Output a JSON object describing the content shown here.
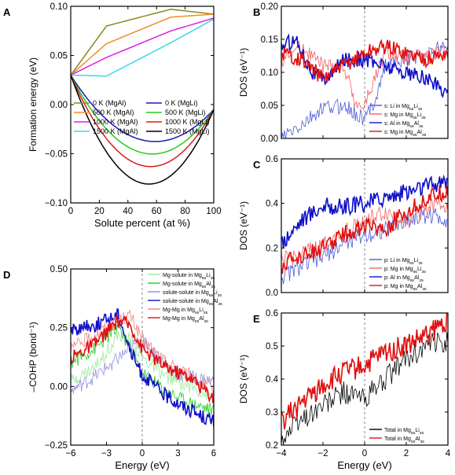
{
  "chart_data": [
    {
      "id": "A",
      "type": "line",
      "panel_label": "A",
      "xlabel": "Solute percent (at %)",
      "ylabel": "Formation energy (eV)",
      "xlim": [
        0,
        100
      ],
      "ylim": [
        -0.1,
        0.1
      ],
      "xticks": [
        "0",
        "20",
        "40",
        "60",
        "80",
        "100"
      ],
      "yticks": [
        "-0.10",
        "-0.05",
        "0.00",
        "0.05",
        "0.10"
      ],
      "legend_position": "center",
      "series": [
        {
          "name": "0 K (MgAl)",
          "color": "#8a8a1e",
          "values": [
            [
              0,
              0.03
            ],
            [
              25,
              0.08
            ],
            [
              70,
              0.097
            ],
            [
              100,
              0.092
            ]
          ]
        },
        {
          "name": "500 K (MgAl)",
          "color": "#f08c28",
          "values": [
            [
              0,
              0.03
            ],
            [
              25,
              0.062
            ],
            [
              70,
              0.089
            ],
            [
              100,
              0.092
            ]
          ]
        },
        {
          "name": "1000 K (MgAl)",
          "color": "#e020e0",
          "values": [
            [
              0,
              0.03
            ],
            [
              25,
              0.048
            ],
            [
              70,
              0.075
            ],
            [
              100,
              0.088
            ]
          ]
        },
        {
          "name": "1500 K (MgAl)",
          "color": "#3ad8e8",
          "values": [
            [
              0,
              0.03
            ],
            [
              25,
              0.029
            ],
            [
              70,
              0.063
            ],
            [
              100,
              0.087
            ]
          ]
        },
        {
          "name": "0 K (MgLi)",
          "color": "#1a1ab8",
          "values": [
            [
              0,
              0.03
            ],
            [
              50,
              -0.036
            ],
            [
              100,
              -0.005
            ]
          ]
        },
        {
          "name": "500 K (MgLi)",
          "color": "#22cc22",
          "values": [
            [
              0,
              0.03
            ],
            [
              50,
              -0.049
            ],
            [
              100,
              -0.005
            ]
          ]
        },
        {
          "name": "1000 K (MgLi)",
          "color": "#e01818",
          "values": [
            [
              0,
              0.03
            ],
            [
              50,
              -0.062
            ],
            [
              100,
              -0.005
            ]
          ]
        },
        {
          "name": "1500 K (MgLi)",
          "color": "#000000",
          "values": [
            [
              0,
              0.03
            ],
            [
              50,
              -0.08
            ],
            [
              100,
              -0.005
            ]
          ]
        }
      ]
    },
    {
      "id": "B",
      "type": "line",
      "panel_label": "B",
      "ylabel": "DOS (eV⁻¹)",
      "xlim": [
        -4,
        4
      ],
      "ylim": [
        0,
        0.2
      ],
      "xticks": [],
      "yticks": [
        "0.00",
        "0.05",
        "0.10",
        "0.15",
        "0.20"
      ],
      "legend_position": "bottom-right",
      "series": [
        {
          "name": "s: Li in Mg65Li35",
          "color": "#4a5ad8",
          "values": [
            [
              -4,
              0.0
            ],
            [
              -3,
              0.02
            ],
            [
              -2,
              0.045
            ],
            [
              -1,
              0.05
            ],
            [
              -0.2,
              0.032
            ],
            [
              0,
              0.028
            ],
            [
              0.5,
              0.06
            ],
            [
              1,
              0.11
            ],
            [
              2,
              0.12
            ],
            [
              3,
              0.13
            ],
            [
              4,
              0.14
            ]
          ]
        },
        {
          "name": "s: Mg in Mg65Li35",
          "color": "#f06060",
          "values": [
            [
              -4,
              0.12
            ],
            [
              -3,
              0.14
            ],
            [
              -2,
              0.11
            ],
            [
              -1,
              0.11
            ],
            [
              -0.5,
              0.06
            ],
            [
              -0.1,
              0.045
            ],
            [
              0.5,
              0.09
            ],
            [
              1,
              0.13
            ],
            [
              2,
              0.12
            ],
            [
              3,
              0.125
            ],
            [
              4,
              0.13
            ]
          ]
        },
        {
          "name": "s: Al in Mg65Al35",
          "color": "#1010c8",
          "values": [
            [
              -4,
              0.14
            ],
            [
              -3.3,
              0.15
            ],
            [
              -2.5,
              0.1
            ],
            [
              -2,
              0.09
            ],
            [
              -1.5,
              0.1
            ],
            [
              -1,
              0.12
            ],
            [
              0,
              0.12
            ],
            [
              1,
              0.11
            ],
            [
              2,
              0.1
            ],
            [
              3,
              0.09
            ],
            [
              4,
              0.07
            ]
          ]
        },
        {
          "name": "s: Mg in Mg65Al35",
          "color": "#e01010",
          "values": [
            [
              -4,
              0.13
            ],
            [
              -3,
              0.12
            ],
            [
              -2,
              0.09
            ],
            [
              -1,
              0.11
            ],
            [
              0,
              0.13
            ],
            [
              1,
              0.14
            ],
            [
              2,
              0.13
            ],
            [
              3,
              0.12
            ],
            [
              4,
              0.13
            ]
          ]
        }
      ]
    },
    {
      "id": "C",
      "type": "line",
      "panel_label": "C",
      "ylabel": "DOS (eV⁻¹)",
      "xlim": [
        -4,
        4
      ],
      "ylim": [
        0,
        0.6
      ],
      "xticks": [],
      "yticks": [
        "0.0",
        "0.2",
        "0.4",
        "0.6"
      ],
      "legend_position": "bottom-right",
      "series": [
        {
          "name": "p: Li in Mg65Li35",
          "color": "#4a5ad8",
          "values": [
            [
              -4,
              0.07
            ],
            [
              -3,
              0.12
            ],
            [
              -2,
              0.16
            ],
            [
              -1,
              0.22
            ],
            [
              0,
              0.26
            ],
            [
              1,
              0.28
            ],
            [
              2,
              0.32
            ],
            [
              3,
              0.35
            ],
            [
              4,
              0.33
            ]
          ]
        },
        {
          "name": "p: Mg in Mg65Li35",
          "color": "#f06060",
          "values": [
            [
              -4,
              0.14
            ],
            [
              -3,
              0.17
            ],
            [
              -2,
              0.21
            ],
            [
              -1,
              0.27
            ],
            [
              0,
              0.32
            ],
            [
              1,
              0.36
            ],
            [
              2,
              0.33
            ],
            [
              3,
              0.38
            ],
            [
              4,
              0.4
            ]
          ]
        },
        {
          "name": "p: Al in Mg65Al35",
          "color": "#1010c8",
          "values": [
            [
              -4,
              0.22
            ],
            [
              -3,
              0.33
            ],
            [
              -2,
              0.39
            ],
            [
              -1,
              0.38
            ],
            [
              0,
              0.4
            ],
            [
              1,
              0.43
            ],
            [
              2,
              0.45
            ],
            [
              3,
              0.48
            ],
            [
              4,
              0.5
            ]
          ]
        },
        {
          "name": "p: Mg in Mg65Al35",
          "color": "#e01010",
          "values": [
            [
              -4,
              0.12
            ],
            [
              -3,
              0.17
            ],
            [
              -2,
              0.2
            ],
            [
              -1,
              0.26
            ],
            [
              0,
              0.3
            ],
            [
              1,
              0.29
            ],
            [
              2,
              0.36
            ],
            [
              3,
              0.42
            ],
            [
              4,
              0.46
            ]
          ]
        }
      ]
    },
    {
      "id": "D",
      "type": "line",
      "panel_label": "D",
      "xlabel": "Energy (eV)",
      "ylabel": "–COHP (bond⁻¹)",
      "xlim": [
        -6,
        6
      ],
      "ylim": [
        -0.25,
        0.5
      ],
      "xticks": [
        "-6",
        "-3",
        "0",
        "3",
        "6"
      ],
      "yticks": [
        "-0.25",
        "0.00",
        "0.25",
        "0.50"
      ],
      "legend_position": "top-right",
      "series": [
        {
          "name": "Mg-solute in Mg65Li35",
          "color": "#9be89b",
          "values": [
            [
              -6,
              0.02
            ],
            [
              -4,
              0.08
            ],
            [
              -2,
              0.22
            ],
            [
              -1,
              0.2
            ],
            [
              0,
              0.12
            ],
            [
              2,
              0.04
            ],
            [
              4,
              0.0
            ],
            [
              6,
              -0.05
            ]
          ]
        },
        {
          "name": "Mg-solute in Mg65Al35",
          "color": "#22cc22",
          "values": [
            [
              -6,
              0.1
            ],
            [
              -4,
              0.16
            ],
            [
              -2,
              0.25
            ],
            [
              -1,
              0.16
            ],
            [
              0,
              0.06
            ],
            [
              2,
              -0.02
            ],
            [
              4,
              -0.07
            ],
            [
              6,
              -0.1
            ]
          ]
        },
        {
          "name": "solute-solute in Mg65Li35",
          "color": "#9090e0",
          "values": [
            [
              -6,
              -0.02
            ],
            [
              -4,
              0.04
            ],
            [
              -2,
              0.12
            ],
            [
              -1,
              0.16
            ],
            [
              0,
              0.2
            ],
            [
              1,
              0.14
            ],
            [
              3,
              0.05
            ],
            [
              5,
              0.03
            ],
            [
              6,
              0.02
            ]
          ]
        },
        {
          "name": "solute-solute in Mg65Al35",
          "color": "#1010c8",
          "values": [
            [
              -6,
              0.24
            ],
            [
              -4,
              0.26
            ],
            [
              -2,
              0.31
            ],
            [
              -1,
              0.15
            ],
            [
              0,
              0.05
            ],
            [
              2,
              -0.04
            ],
            [
              4,
              -0.1
            ],
            [
              6,
              -0.15
            ]
          ]
        },
        {
          "name": "Mg-Mg in Mg65Li35",
          "color": "#f08080",
          "values": [
            [
              -6,
              0.16
            ],
            [
              -4,
              0.22
            ],
            [
              -2,
              0.28
            ],
            [
              -1,
              0.3
            ],
            [
              0,
              0.2
            ],
            [
              2,
              0.1
            ],
            [
              4,
              0.05
            ],
            [
              6,
              -0.02
            ]
          ]
        },
        {
          "name": "Mg-Mg in Mg65Al35",
          "color": "#e01010",
          "values": [
            [
              -6,
              0.12
            ],
            [
              -4,
              0.18
            ],
            [
              -2,
              0.28
            ],
            [
              -1,
              0.26
            ],
            [
              0,
              0.16
            ],
            [
              2,
              0.08
            ],
            [
              4,
              0.04
            ],
            [
              6,
              -0.05
            ]
          ]
        }
      ]
    },
    {
      "id": "E",
      "type": "line",
      "panel_label": "E",
      "xlabel": "Energy (eV)",
      "ylabel": "DOS (eV⁻¹)",
      "xlim": [
        -4,
        4
      ],
      "ylim": [
        0.2,
        0.6
      ],
      "xticks": [
        "-4",
        "-2",
        "0",
        "2",
        "4"
      ],
      "yticks": [
        "0.2",
        "0.3",
        "0.4",
        "0.5",
        "0.6"
      ],
      "legend_position": "bottom-right",
      "series": [
        {
          "name": "Total in Mg65Li35",
          "color": "#000000",
          "values": [
            [
              -4,
              0.22
            ],
            [
              -3,
              0.28
            ],
            [
              -2,
              0.32
            ],
            [
              -1,
              0.36
            ],
            [
              0,
              0.34
            ],
            [
              1,
              0.4
            ],
            [
              2,
              0.46
            ],
            [
              3,
              0.5
            ],
            [
              4,
              0.52
            ]
          ]
        },
        {
          "name": "Total in Mg65Al35",
          "color": "#e01010",
          "values": [
            [
              -4,
              0.27
            ],
            [
              -3,
              0.33
            ],
            [
              -2,
              0.38
            ],
            [
              -1,
              0.42
            ],
            [
              0,
              0.44
            ],
            [
              1,
              0.48
            ],
            [
              2,
              0.5
            ],
            [
              3,
              0.53
            ],
            [
              4,
              0.58
            ]
          ]
        }
      ]
    }
  ]
}
